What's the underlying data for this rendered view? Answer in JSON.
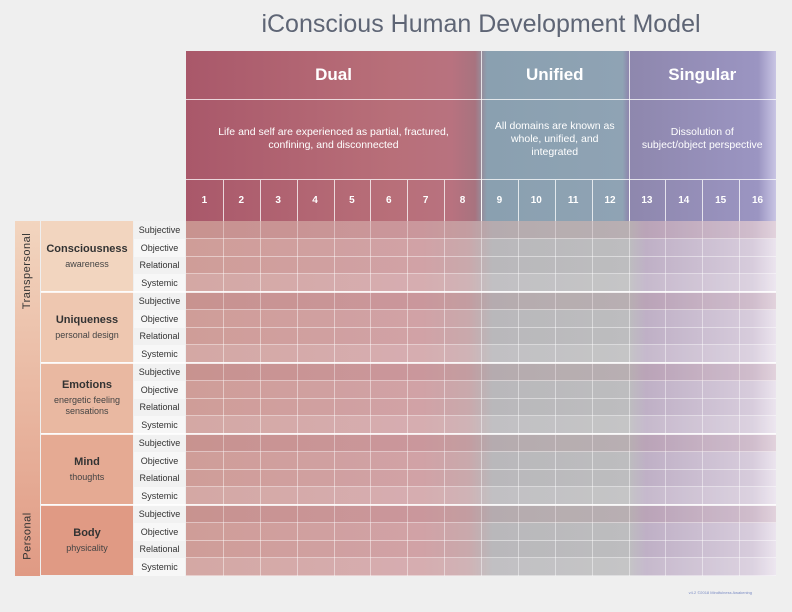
{
  "title": "iConscious Human Development Model",
  "phases": [
    {
      "name": "Dual",
      "description": "Life and self are experienced as partial, fractured, confining, and disconnected",
      "stages": [
        "1",
        "2",
        "3",
        "4",
        "5",
        "6",
        "7",
        "8"
      ]
    },
    {
      "name": "Unified",
      "description": "All domains are known as whole, unified, and integrated",
      "stages": [
        "9",
        "10",
        "11",
        "12"
      ]
    },
    {
      "name": "Singular",
      "description": "Dissolution of subject/object perspective",
      "stages": [
        "13",
        "14",
        "15",
        "16"
      ]
    }
  ],
  "groups": [
    "Transpersonal",
    "Personal"
  ],
  "domains": [
    {
      "name": "Consciousness",
      "sub": "awareness",
      "aspects": [
        "Subjective",
        "Objective",
        "Relational",
        "Systemic"
      ]
    },
    {
      "name": "Uniqueness",
      "sub": "personal design",
      "aspects": [
        "Subjective",
        "Objective",
        "Relational",
        "Systemic"
      ]
    },
    {
      "name": "Emotions",
      "sub": "energetic feeling sensations",
      "aspects": [
        "Subjective",
        "Objective",
        "Relational",
        "Systemic"
      ]
    },
    {
      "name": "Mind",
      "sub": "thoughts",
      "aspects": [
        "Subjective",
        "Objective",
        "Relational",
        "Systemic"
      ]
    },
    {
      "name": "Body",
      "sub": "physicality",
      "aspects": [
        "Subjective",
        "Objective",
        "Relational",
        "Systemic"
      ]
    }
  ],
  "colors": {
    "domain_fills": [
      "#f2d5bf",
      "#eec7b0",
      "#e9b8a1",
      "#e5aa93",
      "#e09a84"
    ],
    "title": "#5e6575"
  },
  "footnote": "v4.2 ©2018 Mindfulness Awakening"
}
